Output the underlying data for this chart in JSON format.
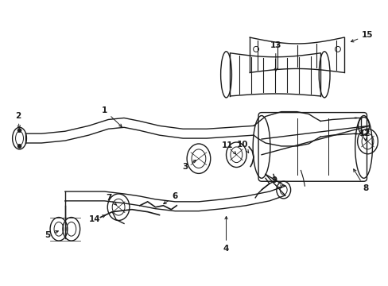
{
  "background_color": "#ffffff",
  "line_color": "#1a1a1a",
  "lw": 1.0
}
